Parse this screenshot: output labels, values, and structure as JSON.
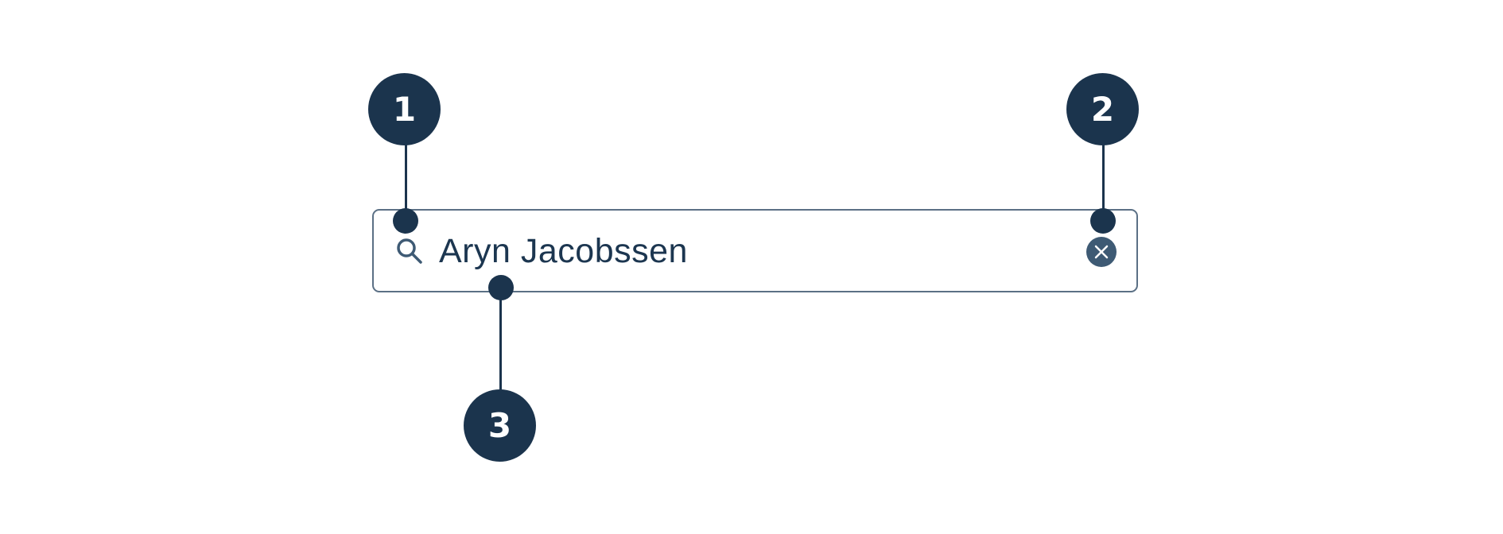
{
  "search": {
    "value": "Aryn Jacobssen",
    "icon": "search-icon",
    "clear_icon": "close-icon"
  },
  "callouts": [
    {
      "number": "1"
    },
    {
      "number": "2"
    },
    {
      "number": "3"
    }
  ],
  "colors": {
    "badge": "#1b344d",
    "border": "#5b7085",
    "text": "#1c3650",
    "clear_button": "#3e5a74"
  }
}
